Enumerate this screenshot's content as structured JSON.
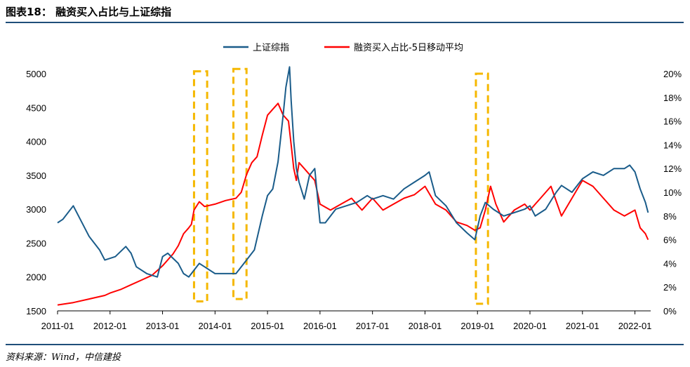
{
  "header": {
    "title": "图表18： 融资买入占比与上证综指"
  },
  "footer": {
    "source": "资料来源：Wind，中信建投"
  },
  "chart_data": {
    "type": "line",
    "title": "融资买入占比与上证综指",
    "x_ticks": [
      "2011-01",
      "2012-01",
      "2013-01",
      "2014-01",
      "2015-01",
      "2016-01",
      "2017-01",
      "2018-01",
      "2019-01",
      "2020-01",
      "2021-01",
      "2022-01"
    ],
    "y_left_ticks": [
      "5000",
      "4500",
      "4000",
      "3500",
      "3000",
      "2500",
      "2000",
      "1500"
    ],
    "y_right_ticks": [
      "20%",
      "18%",
      "16%",
      "14%",
      "12%",
      "10%",
      "8%",
      "6%",
      "4%",
      "2%",
      "0%"
    ],
    "ylim_left": [
      1500,
      5000
    ],
    "ylim_right": [
      0,
      20
    ],
    "legend_position": "top-center",
    "colors": {
      "sse": "#1a5c8a",
      "margin": "#ff0000",
      "highlight": "#f5b800"
    },
    "series": [
      {
        "name": "上证综指",
        "axis": "left",
        "x": [
          2011.0,
          2011.1,
          2011.3,
          2011.5,
          2011.6,
          2011.8,
          2011.9,
          2012.1,
          2012.3,
          2012.4,
          2012.5,
          2012.7,
          2012.9,
          2013.0,
          2013.1,
          2013.3,
          2013.4,
          2013.5,
          2013.7,
          2013.8,
          2014.0,
          2014.2,
          2014.4,
          2014.6,
          2014.75,
          2014.9,
          2015.0,
          2015.1,
          2015.2,
          2015.3,
          2015.35,
          2015.42,
          2015.45,
          2015.5,
          2015.55,
          2015.6,
          2015.7,
          2015.8,
          2015.9,
          2016.0,
          2016.1,
          2016.3,
          2016.5,
          2016.7,
          2016.9,
          2017.0,
          2017.2,
          2017.4,
          2017.6,
          2017.8,
          2018.0,
          2018.08,
          2018.2,
          2018.4,
          2018.6,
          2018.8,
          2018.95,
          2019.05,
          2019.15,
          2019.3,
          2019.5,
          2019.7,
          2019.9,
          2020.0,
          2020.1,
          2020.3,
          2020.5,
          2020.6,
          2020.8,
          2021.0,
          2021.2,
          2021.4,
          2021.6,
          2021.8,
          2021.9,
          2022.0,
          2022.1,
          2022.2,
          2022.25
        ],
        "values": [
          2800,
          2850,
          3050,
          2750,
          2600,
          2400,
          2250,
          2300,
          2450,
          2350,
          2150,
          2050,
          2000,
          2300,
          2350,
          2200,
          2050,
          2000,
          2200,
          2150,
          2050,
          2050,
          2050,
          2250,
          2400,
          2900,
          3200,
          3300,
          3700,
          4400,
          4800,
          5100,
          4600,
          4000,
          3600,
          3400,
          3150,
          3500,
          3600,
          2800,
          2800,
          3000,
          3050,
          3100,
          3200,
          3150,
          3200,
          3150,
          3300,
          3400,
          3500,
          3550,
          3200,
          3050,
          2800,
          2650,
          2550,
          2900,
          3100,
          3000,
          2900,
          2950,
          3000,
          3050,
          2900,
          3000,
          3250,
          3350,
          3250,
          3450,
          3550,
          3500,
          3600,
          3600,
          3650,
          3550,
          3300,
          3100,
          2950
        ]
      },
      {
        "name": "融资买入占比-5日移动平均",
        "axis": "right",
        "x": [
          2011.0,
          2011.3,
          2011.6,
          2011.9,
          2012.0,
          2012.2,
          2012.4,
          2012.6,
          2012.8,
          2013.0,
          2013.2,
          2013.3,
          2013.4,
          2013.5,
          2013.55,
          2013.6,
          2013.7,
          2013.8,
          2014.0,
          2014.2,
          2014.4,
          2014.5,
          2014.6,
          2014.7,
          2014.8,
          2014.9,
          2015.0,
          2015.1,
          2015.2,
          2015.3,
          2015.4,
          2015.45,
          2015.5,
          2015.55,
          2015.6,
          2015.7,
          2015.8,
          2015.9,
          2016.0,
          2016.2,
          2016.4,
          2016.6,
          2016.8,
          2017.0,
          2017.2,
          2017.4,
          2017.6,
          2017.8,
          2018.0,
          2018.2,
          2018.4,
          2018.6,
          2018.8,
          2018.95,
          2019.05,
          2019.15,
          2019.25,
          2019.35,
          2019.5,
          2019.7,
          2019.9,
          2020.0,
          2020.2,
          2020.4,
          2020.6,
          2020.8,
          2021.0,
          2021.2,
          2021.4,
          2021.6,
          2021.8,
          2022.0,
          2022.1,
          2022.2,
          2022.25
        ],
        "values": [
          0.5,
          0.7,
          1.0,
          1.3,
          1.5,
          1.8,
          2.2,
          2.6,
          3.0,
          3.8,
          4.8,
          5.5,
          6.5,
          7.0,
          7.3,
          8.5,
          9.2,
          8.8,
          9.0,
          9.3,
          9.5,
          10.0,
          11.5,
          12.5,
          13.0,
          14.8,
          16.5,
          17.0,
          17.5,
          16.5,
          16.0,
          14.0,
          12.0,
          11.0,
          12.5,
          12.0,
          11.5,
          11.0,
          9.0,
          8.5,
          9.0,
          9.5,
          8.5,
          9.5,
          8.5,
          9.0,
          9.5,
          9.8,
          10.5,
          9.0,
          8.5,
          7.5,
          7.2,
          6.8,
          7.0,
          8.5,
          10.5,
          9.0,
          7.5,
          8.5,
          9.0,
          8.5,
          9.5,
          10.5,
          8.0,
          9.5,
          11.0,
          10.5,
          9.5,
          8.5,
          8.0,
          8.5,
          7.0,
          6.5,
          6.0
        ]
      }
    ],
    "highlights": [
      {
        "x_start": 2013.6,
        "x_end": 2013.85,
        "y_top_pct": 20.2,
        "y_bottom_pct": 0.8
      },
      {
        "x_start": 2014.35,
        "x_end": 2014.6,
        "y_top_pct": 20.4,
        "y_bottom_pct": 1.0
      },
      {
        "x_start": 2018.97,
        "x_end": 2019.2,
        "y_top_pct": 20.0,
        "y_bottom_pct": 0.6
      }
    ]
  }
}
